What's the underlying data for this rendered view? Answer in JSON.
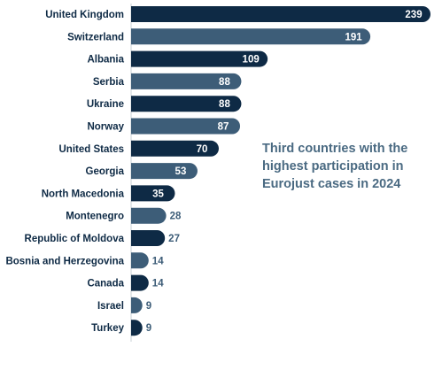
{
  "chart_data": {
    "type": "bar",
    "orientation": "horizontal",
    "title_lines": [
      "Third countries with the",
      "highest participation in",
      "Eurojust cases in 2024"
    ],
    "categories": [
      "United Kingdom",
      "Switzerland",
      "Albania",
      "Serbia",
      "Ukraine",
      "Norway",
      "United States",
      "Georgia",
      "North Macedonia",
      "Montenegro",
      "Republic of Moldova",
      "Bosnia and Herzegovina",
      "Canada",
      "Israel",
      "Turkey"
    ],
    "values": [
      239,
      191,
      109,
      88,
      88,
      87,
      70,
      53,
      35,
      28,
      27,
      14,
      14,
      9,
      9
    ],
    "bar_colors": [
      "#0e2a45",
      "#3d5d78",
      "#0e2a45",
      "#3d5d78",
      "#0e2a45",
      "#3d5d78",
      "#0e2a45",
      "#3d5d78",
      "#0e2a45",
      "#3d5d78",
      "#0e2a45",
      "#3d5d78",
      "#0e2a45",
      "#3d5d78",
      "#0e2a45"
    ],
    "value_labels": "on bar end; outside for small bars",
    "grid": false
  },
  "colors": {
    "dark_bar": "#0e2a45",
    "light_bar": "#3d5d78",
    "category_text": "#0e2a45",
    "title_text": "#4a6a82",
    "outside_label": "#3d5d78"
  }
}
